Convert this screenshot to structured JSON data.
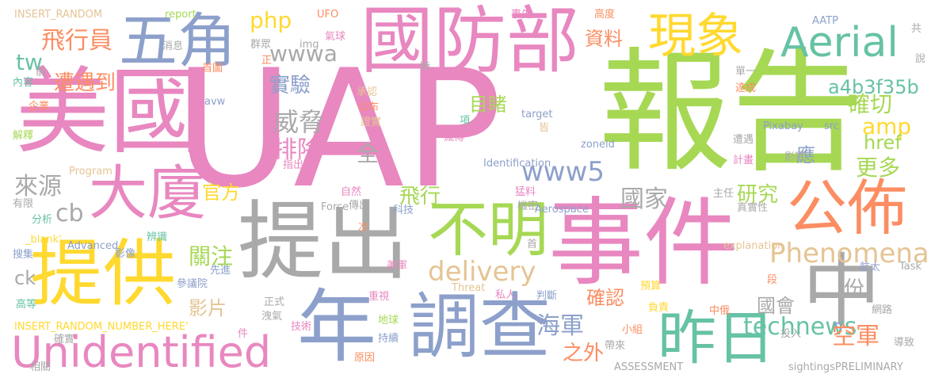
{
  "palette": {
    "pink": "#e887c0",
    "green": "#a6d854",
    "blue": "#8da0cb",
    "gray": "#a9a9a9",
    "yellow": "#ffd92f",
    "orange": "#fc8d62",
    "teal": "#66c2a5",
    "tan": "#e5c494"
  },
  "words": [
    {
      "text": "UAP",
      "color": "pink"
    },
    {
      "text": "報告",
      "color": "green"
    },
    {
      "text": "美國",
      "color": "pink"
    },
    {
      "text": "事件",
      "color": "pink"
    },
    {
      "text": "提出",
      "color": "gray"
    },
    {
      "text": "國防部",
      "color": "pink"
    },
    {
      "text": "提供",
      "color": "yellow"
    },
    {
      "text": "調查",
      "color": "blue"
    },
    {
      "text": "年",
      "color": "blue"
    },
    {
      "text": "中",
      "color": "gray"
    },
    {
      "text": "五角",
      "color": "blue"
    },
    {
      "text": "大廈",
      "color": "pink"
    },
    {
      "text": "不明",
      "color": "green"
    },
    {
      "text": "公佈",
      "color": "orange"
    },
    {
      "text": "昨日",
      "color": "teal"
    },
    {
      "text": "現象",
      "color": "yellow"
    },
    {
      "text": "Aerial",
      "color": "teal"
    },
    {
      "text": "Unidentified",
      "color": "pink"
    },
    {
      "text": "Phenomena",
      "color": "tan"
    },
    {
      "text": "delivery",
      "color": "tan"
    },
    {
      "text": "technews",
      "color": "teal"
    },
    {
      "text": "www5",
      "color": "blue"
    },
    {
      "text": "wwwa",
      "color": "gray"
    },
    {
      "text": "a4b3f35b",
      "color": "teal"
    },
    {
      "text": "amp",
      "color": "yellow"
    },
    {
      "text": "href",
      "color": "green"
    },
    {
      "text": "php",
      "color": "yellow"
    },
    {
      "text": "tw",
      "color": "teal"
    },
    {
      "text": "cb",
      "color": "gray"
    },
    {
      "text": "ck",
      "color": "gray"
    },
    {
      "text": "n",
      "color": "blue"
    },
    {
      "text": "資料",
      "color": "orange"
    },
    {
      "text": "實驗",
      "color": "blue"
    },
    {
      "text": "威脅",
      "color": "gray"
    },
    {
      "text": "排除",
      "color": "pink"
    },
    {
      "text": "目睹",
      "color": "green"
    },
    {
      "text": "確切",
      "color": "green"
    },
    {
      "text": "更多",
      "color": "green"
    },
    {
      "text": "國家",
      "color": "gray"
    },
    {
      "text": "研究",
      "color": "green"
    },
    {
      "text": "應",
      "color": "blue"
    },
    {
      "text": "飛行員",
      "color": "orange"
    },
    {
      "text": "遭遇到",
      "color": "orange"
    },
    {
      "text": "來源",
      "color": "gray"
    },
    {
      "text": "官方",
      "color": "yellow"
    },
    {
      "text": "飛行",
      "color": "green"
    },
    {
      "text": "關注",
      "color": "green"
    },
    {
      "text": "影片",
      "color": "tan"
    },
    {
      "text": "海軍",
      "color": "blue"
    },
    {
      "text": "之外",
      "color": "orange"
    },
    {
      "text": "確認",
      "color": "orange"
    },
    {
      "text": "國會",
      "color": "gray"
    },
    {
      "text": "空軍",
      "color": "orange"
    },
    {
      "text": "份",
      "color": "gray"
    },
    {
      "text": "全",
      "color": "gray"
    },
    {
      "text": "INSERT_RANDOM",
      "color": "tan"
    },
    {
      "text": "report",
      "color": "green"
    },
    {
      "text": "UFO",
      "color": "orange"
    },
    {
      "text": "事先",
      "color": "pink"
    },
    {
      "text": "高度",
      "color": "orange"
    },
    {
      "text": "消息",
      "color": "gray"
    },
    {
      "text": "img",
      "color": "gray"
    },
    {
      "text": "氣球",
      "color": "pink"
    },
    {
      "text": "群眾",
      "color": "gray"
    },
    {
      "text": "AATP",
      "color": "blue"
    },
    {
      "text": "共",
      "color": "gray"
    },
    {
      "text": "說",
      "color": "gray"
    },
    {
      "text": "首圖",
      "color": "orange"
    },
    {
      "text": "正",
      "color": "orange"
    },
    {
      "text": "時",
      "color": "gray"
    },
    {
      "text": "內容",
      "color": "teal"
    },
    {
      "text": "前",
      "color": "gray"
    },
    {
      "text": "單一",
      "color": "gray"
    },
    {
      "text": "avw",
      "color": "blue"
    },
    {
      "text": "承認",
      "color": "tan"
    },
    {
      "text": "企業",
      "color": "orange"
    },
    {
      "text": "公布",
      "color": "orange"
    },
    {
      "text": "達成",
      "color": "orange"
    },
    {
      "text": "target",
      "color": "blue"
    },
    {
      "text": "皆",
      "color": "tan"
    },
    {
      "text": "項",
      "color": "teal"
    },
    {
      "text": "證實",
      "color": "tan"
    },
    {
      "text": "瘋傳",
      "color": "pink"
    },
    {
      "text": "Pixabay",
      "color": "blue"
    },
    {
      "text": "src",
      "color": "blue"
    },
    {
      "text": "解釋",
      "color": "green"
    },
    {
      "text": "zoneid",
      "color": "blue"
    },
    {
      "text": "遭遇",
      "color": "gray"
    },
    {
      "text": "指出",
      "color": "pink"
    },
    {
      "text": "Identification",
      "color": "blue"
    },
    {
      "text": "Program",
      "color": "tan"
    },
    {
      "text": "計畫",
      "color": "pink"
    },
    {
      "text": "影響",
      "color": "gray"
    },
    {
      "text": "自然",
      "color": "pink"
    },
    {
      "text": "主任",
      "color": "gray"
    },
    {
      "text": "有限",
      "color": "gray"
    },
    {
      "text": "猛料",
      "color": "pink"
    },
    {
      "text": "傳出",
      "color": "gray"
    },
    {
      "text": "科技",
      "color": "blue"
    },
    {
      "text": "Aerospace",
      "color": "blue"
    },
    {
      "text": "真實性",
      "color": "gray"
    },
    {
      "text": "Force",
      "color": "gray"
    },
    {
      "text": "機密",
      "color": "gray"
    },
    {
      "text": "分析",
      "color": "teal"
    },
    {
      "text": "_blank'",
      "color": "yellow"
    },
    {
      "text": "次",
      "color": "orange"
    },
    {
      "text": "辨識",
      "color": "teal"
    },
    {
      "text": "Advanced",
      "color": "blue"
    },
    {
      "text": "首",
      "color": "gray"
    },
    {
      "text": "影像",
      "color": "blue"
    },
    {
      "text": "搜集",
      "color": "blue"
    },
    {
      "text": "explanation",
      "color": "tan"
    },
    {
      "text": "航太",
      "color": "blue"
    },
    {
      "text": "Task",
      "color": "gray"
    },
    {
      "text": "先進",
      "color": "blue"
    },
    {
      "text": "參議院",
      "color": "blue"
    },
    {
      "text": "美軍",
      "color": "pink"
    },
    {
      "text": "段",
      "color": "orange"
    },
    {
      "text": "Threat",
      "color": "tan"
    },
    {
      "text": "預算",
      "color": "yellow"
    },
    {
      "text": "私人",
      "color": "pink"
    },
    {
      "text": "判斷",
      "color": "blue"
    },
    {
      "text": "負責",
      "color": "yellow"
    },
    {
      "text": "高等",
      "color": "teal"
    },
    {
      "text": "正式",
      "color": "gray"
    },
    {
      "text": "重視",
      "color": "pink"
    },
    {
      "text": "中俄",
      "color": "orange"
    },
    {
      "text": "洩氣",
      "color": "gray"
    },
    {
      "text": "網路",
      "color": "gray"
    },
    {
      "text": "INSERT_RANDOM_NUMBER_HERE'",
      "color": "yellow"
    },
    {
      "text": "件",
      "color": "pink"
    },
    {
      "text": "地球",
      "color": "green"
    },
    {
      "text": "技術",
      "color": "pink"
    },
    {
      "text": "小組",
      "color": "orange"
    },
    {
      "text": "投入",
      "color": "gray"
    },
    {
      "text": "確實",
      "color": "gray"
    },
    {
      "text": "持續",
      "color": "blue"
    },
    {
      "text": "帶來",
      "color": "gray"
    },
    {
      "text": "導致",
      "color": "gray"
    },
    {
      "text": "相關",
      "color": "gray"
    },
    {
      "text": "原因",
      "color": "orange"
    },
    {
      "text": "ASSESSMENT",
      "color": "gray"
    },
    {
      "text": "sightingsPRELIMINARY",
      "color": "gray"
    }
  ]
}
